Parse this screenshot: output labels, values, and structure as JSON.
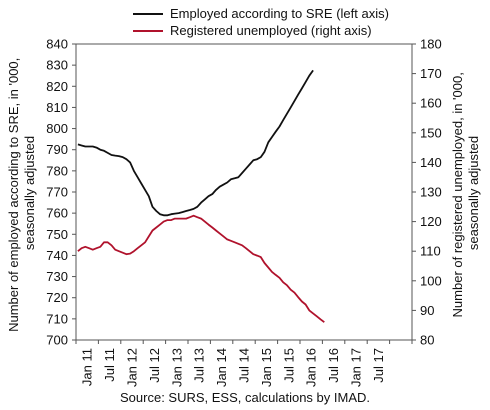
{
  "chart_data": {
    "type": "line",
    "title": "",
    "legend": {
      "placement": "top-center"
    },
    "grid": false,
    "source": "Source: SURS, ESS, calculations by IMAD.",
    "left_axis": {
      "label_lines": [
        "Number of employed according to SRE, in '000,",
        "seasonally adjusted"
      ],
      "ylim": [
        700,
        840
      ],
      "ticks": [
        700,
        710,
        720,
        730,
        740,
        750,
        760,
        770,
        780,
        790,
        800,
        810,
        820,
        830,
        840
      ]
    },
    "right_axis": {
      "label_lines": [
        "Number of registered unemployed, in '000,",
        "seasonally adjusted"
      ],
      "ylim": [
        80,
        180
      ],
      "ticks": [
        80,
        90,
        100,
        110,
        120,
        130,
        140,
        150,
        160,
        170,
        180
      ]
    },
    "x_ticks": [
      "Jan 11",
      "Jul 11",
      "Jan 12",
      "Jul 12",
      "Jan 13",
      "Jul 13",
      "Jan 14",
      "Jul 14",
      "Jan 15",
      "Jul 15",
      "Jan 16",
      "Jul 16",
      "Jan 17",
      "Jul 17"
    ],
    "series": [
      {
        "name": "Employed according to SRE (left axis)",
        "axis": "left",
        "color": "#111111",
        "values": [
          792.5,
          792,
          791.5,
          791.5,
          791.5,
          791,
          790,
          789.5,
          788.5,
          787.5,
          787.2,
          787,
          786.5,
          785.5,
          784,
          780,
          777,
          774,
          771,
          768,
          763,
          761,
          759.5,
          759,
          759,
          759.5,
          759.8,
          760,
          760.5,
          761,
          761.5,
          762,
          763,
          765,
          766.5,
          768,
          769,
          771,
          772.5,
          773.5,
          774.5,
          776,
          776.5,
          777,
          779,
          781,
          783,
          785,
          785.5,
          786.5,
          789,
          793.5,
          796,
          798.5,
          801,
          804,
          807,
          810,
          813,
          816,
          819,
          822,
          825,
          827.5
        ]
      },
      {
        "name": "Registered unemployed (right axis)",
        "axis": "right",
        "color": "#b0122c",
        "values": [
          110,
          111,
          111.5,
          111,
          110.5,
          111,
          111.5,
          113,
          113,
          112,
          110.5,
          110,
          109.5,
          109,
          109.2,
          110,
          111,
          112,
          113,
          115,
          117,
          118,
          119,
          120,
          120.5,
          120.5,
          121,
          121,
          121,
          121,
          121.5,
          122,
          121.5,
          121,
          120,
          119,
          118,
          117,
          116,
          115,
          114,
          113.5,
          113,
          112.5,
          112,
          111,
          110,
          109,
          108.5,
          108,
          106,
          104.5,
          103,
          102,
          101,
          99.5,
          98.5,
          97,
          96,
          94.5,
          93,
          92,
          90,
          89,
          88,
          87,
          86
        ]
      }
    ]
  }
}
